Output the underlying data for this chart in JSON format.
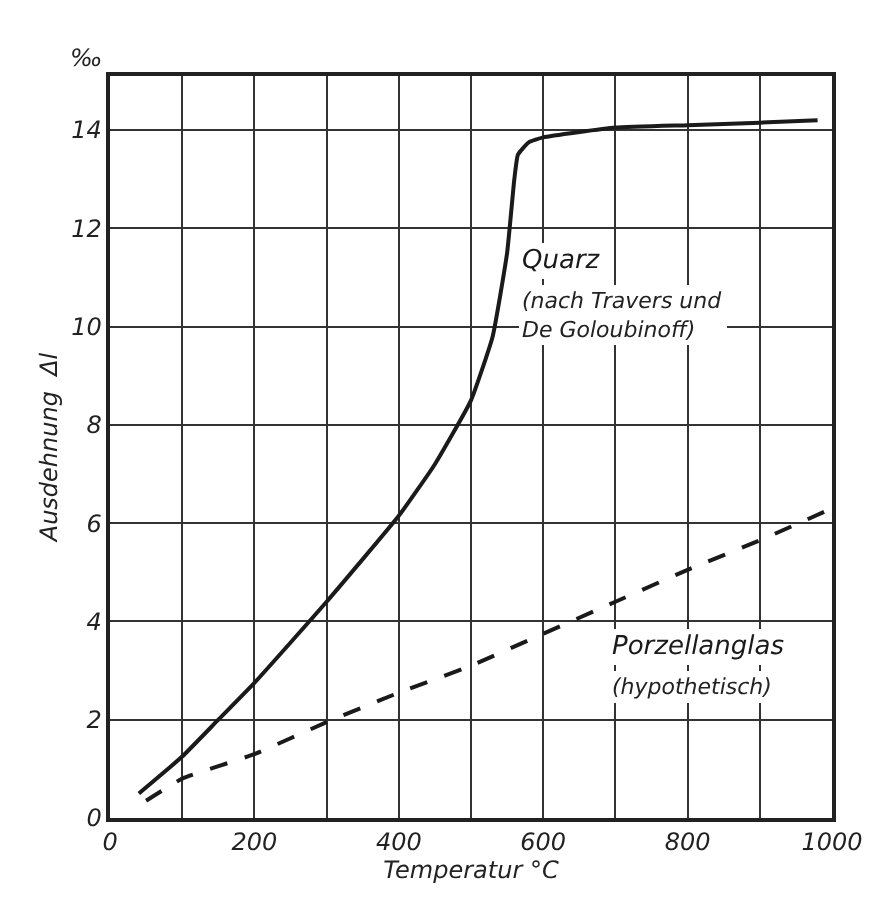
{
  "chart_data": {
    "type": "line",
    "xlabel": "Temperatur °C",
    "ylabel": "Ausdehnung  Δl",
    "xlim": [
      0,
      1000
    ],
    "ylim": [
      0,
      15.1
    ],
    "xticks": [
      0,
      {
        "value": 100,
        "label": null
      },
      200,
      {
        "value": 300,
        "label": null
      },
      400,
      {
        "value": 500,
        "label": null
      },
      600,
      {
        "value": 700,
        "label": null
      },
      800,
      {
        "value": 900,
        "label": null
      },
      1000
    ],
    "yticks": [
      0,
      2,
      4,
      6,
      8,
      10,
      12,
      14
    ],
    "grid": true,
    "legend": false,
    "marker": "none",
    "annotations": [
      "‰",
      "(nach Travers und De Goloubinoff)",
      "(hypothetisch)"
    ],
    "series": [
      {
        "name": "Quarz",
        "color": "#1a1a1a",
        "line_style": "solid",
        "x": [
          40,
          100,
          150,
          200,
          300,
          400,
          450,
          500,
          530,
          550,
          560,
          565,
          580,
          600,
          700,
          800,
          900,
          980
        ],
        "values": [
          0.5,
          1.25,
          2,
          2.75,
          4.4,
          6.15,
          7.2,
          8.5,
          9.8,
          11.5,
          13.0,
          13.5,
          13.75,
          13.85,
          14.05,
          14.1,
          14.15,
          14.2
        ]
      },
      {
        "name": "Porzellanglas",
        "color": "#1a1a1a",
        "line_style": "dashed",
        "x": [
          50,
          100,
          200,
          300,
          400,
          500,
          600,
          700,
          800,
          900,
          1000
        ],
        "values": [
          0.35,
          0.8,
          1.3,
          1.95,
          2.55,
          3.1,
          3.75,
          4.4,
          5.05,
          5.65,
          6.3
        ]
      }
    ]
  }
}
